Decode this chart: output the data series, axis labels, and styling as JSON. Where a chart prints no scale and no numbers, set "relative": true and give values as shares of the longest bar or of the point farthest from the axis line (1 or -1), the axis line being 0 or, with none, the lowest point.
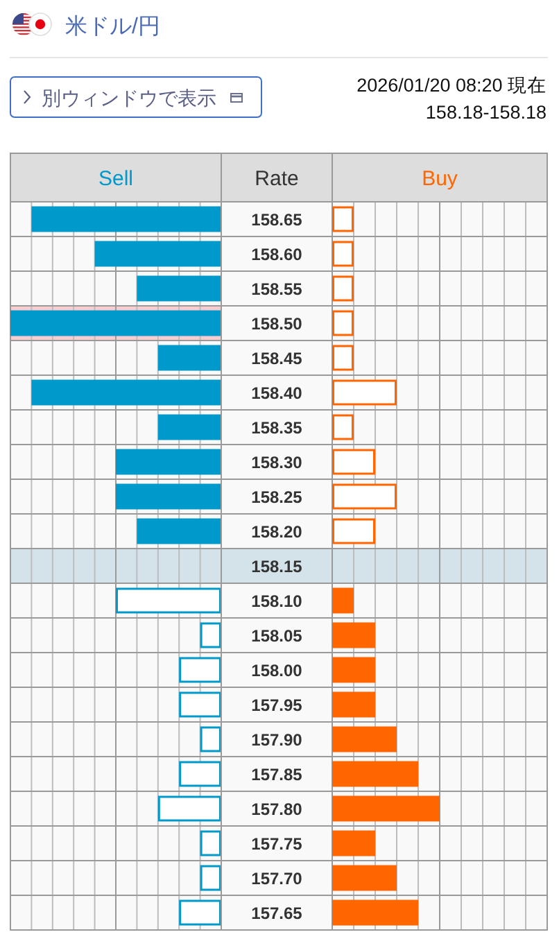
{
  "chart_data": [
    {
      "type": "bar",
      "orientation": "horizontal",
      "relative": true,
      "title": "米ドル/円",
      "annotations": [
        "別ウィンドウで表示",
        "2026/01/20 08:20 現在",
        "158.18-158.18"
      ],
      "categories": [
        "158.65",
        "158.60",
        "158.55",
        "158.50",
        "158.45",
        "158.40",
        "158.35",
        "158.30",
        "158.25",
        "158.20",
        "158.15",
        "158.10",
        "158.05",
        "158.00",
        "157.95",
        "157.90",
        "157.85",
        "157.80",
        "157.75",
        "157.70",
        "157.65"
      ],
      "tick_labels": false,
      "series": [
        {
          "name": "Sell",
          "color": "#0099cc",
          "colors": [
            "#0099cc",
            "#0099cc",
            "#0099cc",
            "#0099cc",
            "#0099cc",
            "#0099cc",
            "#0099cc",
            "#0099cc",
            "#0099cc",
            "#0099cc",
            null,
            "#ffffff",
            "#ffffff",
            "#ffffff",
            "#ffffff",
            "#ffffff",
            "#ffffff",
            "#ffffff",
            "#ffffff",
            "#ffffff",
            "#ffffff"
          ],
          "values": [
            -0.9,
            -0.6,
            -0.4,
            -1,
            -0.3,
            -0.9,
            -0.3,
            -0.5,
            -0.5,
            -0.4,
            0,
            -0.5,
            -0.1,
            -0.2,
            -0.2,
            -0.1,
            -0.2,
            -0.3,
            -0.1,
            -0.1,
            -0.2
          ]
        }
      ],
      "grid": true,
      "bands": [
        {
          "axis": "y",
          "from": "158.15",
          "to": "158.15",
          "color": "#d3e3e9"
        },
        {
          "axis": "y",
          "from": "158.50",
          "to": "158.50",
          "color": "#f9cdd0"
        }
      ]
    },
    {
      "type": "bar",
      "orientation": "horizontal",
      "relative": true,
      "ylabel": "Rate",
      "categories": [
        "158.65",
        "158.60",
        "158.55",
        "158.50",
        "158.45",
        "158.40",
        "158.35",
        "158.30",
        "158.25",
        "158.20",
        "158.15",
        "158.10",
        "158.05",
        "158.00",
        "157.95",
        "157.90",
        "157.85",
        "157.80",
        "157.75",
        "157.70",
        "157.65"
      ],
      "series": [
        {
          "name": "Buy",
          "color": "#ff6600",
          "colors": [
            "#ffffff",
            "#ffffff",
            "#ffffff",
            "#ffffff",
            "#ffffff",
            "#ffffff",
            "#ffffff",
            "#ffffff",
            "#ffffff",
            "#ffffff",
            null,
            "#ff6600",
            "#ff6600",
            "#ff6600",
            "#ff6600",
            "#ff6600",
            "#ff6600",
            "#ff6600",
            "#ff6600",
            "#ff6600",
            "#ff6600"
          ],
          "values": [
            0.2,
            0.2,
            0.2,
            0.2,
            0.2,
            0.6,
            0.2,
            0.4,
            0.6,
            0.4,
            0,
            0.2,
            0.4,
            0.4,
            0.4,
            0.6,
            0.8,
            1,
            0.4,
            0.6,
            0.8
          ]
        }
      ],
      "grid": true,
      "bands": [
        {
          "axis": "y",
          "from": "158.15",
          "to": "158.15",
          "color": "#d3e3e9"
        }
      ]
    }
  ]
}
